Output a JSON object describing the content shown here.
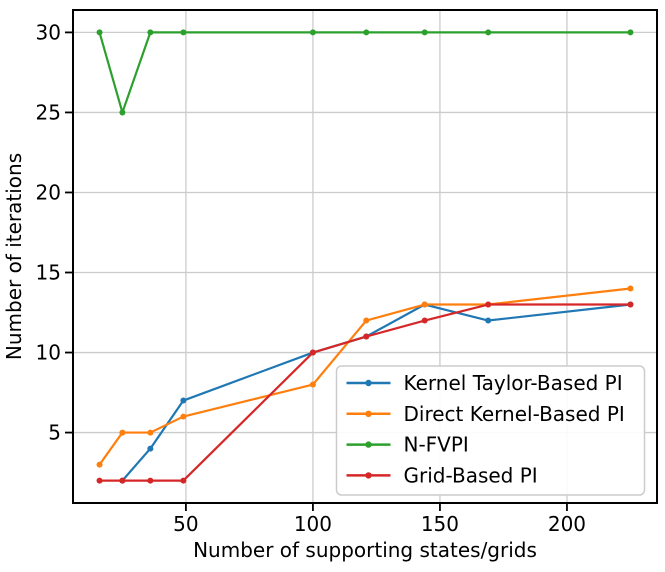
{
  "figure": {
    "background": "#ffffff",
    "grid_color": "#cccccc",
    "spine_color": "#000000",
    "legend_border_color": "#cccccc",
    "legend_fill": "#ffffff"
  },
  "chart_data": {
    "type": "line",
    "title": "",
    "xlabel": "Number of supporting states/grids",
    "ylabel": "Number of iterations",
    "xlim": [
      5.55,
      235.45
    ],
    "ylim": [
      0.6,
      31.4
    ],
    "xticks": [
      50,
      100,
      150,
      200
    ],
    "yticks": [
      5,
      10,
      15,
      20,
      25,
      30
    ],
    "grid": true,
    "legend_position": "inside-lower-right",
    "series": [
      {
        "name": "Kernel Taylor-Based PI",
        "color": "#1f77b4",
        "x": [
          25,
          36,
          49,
          100,
          121,
          144,
          169,
          225
        ],
        "y": [
          2,
          4,
          7,
          10,
          11,
          13,
          12,
          13
        ]
      },
      {
        "name": "Direct Kernel-Based PI",
        "color": "#ff7f0e",
        "x": [
          16,
          25,
          36,
          49,
          100,
          121,
          144,
          169,
          225
        ],
        "y": [
          3,
          5,
          5,
          6,
          8,
          12,
          13,
          13,
          14
        ]
      },
      {
        "name": "N-FVPI",
        "color": "#2ca02c",
        "x": [
          16,
          25,
          36,
          49,
          100,
          121,
          144,
          169,
          225
        ],
        "y": [
          30,
          25,
          30,
          30,
          30,
          30,
          30,
          30,
          30
        ]
      },
      {
        "name": "Grid-Based PI",
        "color": "#d62728",
        "x": [
          16,
          25,
          36,
          49,
          100,
          121,
          144,
          169,
          225
        ],
        "y": [
          2,
          2,
          2,
          2,
          10,
          11,
          12,
          13,
          13
        ]
      }
    ]
  }
}
